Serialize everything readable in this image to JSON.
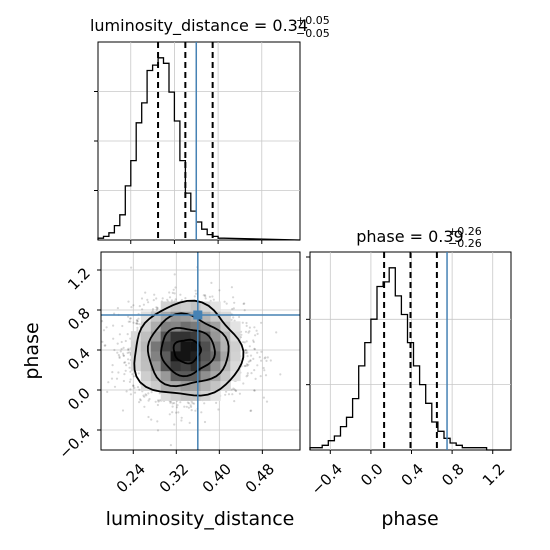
{
  "chart_data": {
    "type": "corner",
    "parameters": [
      "luminosity_distance",
      "phase"
    ],
    "titles": {
      "luminosity_distance": {
        "name": "luminosity_distance",
        "median": "0.34",
        "plus": "+0.05",
        "minus": "−0.05"
      },
      "phase": {
        "name": "phase",
        "median": "0.39",
        "plus": "+0.26",
        "minus": "−0.26"
      }
    },
    "truths": {
      "luminosity_distance": 0.36,
      "phase": 0.75
    },
    "truth_color": "#4682b4",
    "quantiles": {
      "luminosity_distance": [
        0.29,
        0.34,
        0.39
      ],
      "phase": [
        0.13,
        0.39,
        0.65
      ]
    },
    "axes": {
      "luminosity_distance": {
        "label": "luminosity_distance",
        "range": [
          0.18,
          0.55
        ],
        "ticks": [
          0.24,
          0.32,
          0.4,
          0.48
        ],
        "tick_labels": [
          "0.24",
          "0.32",
          "0.40",
          "0.48"
        ]
      },
      "phase": {
        "label": "phase",
        "range": [
          -0.6,
          1.38
        ],
        "ticks": [
          -0.4,
          0.0,
          0.4,
          0.8,
          1.2
        ],
        "tick_labels": [
          "−0.4",
          "0.0",
          "0.4",
          "0.8",
          "1.2"
        ]
      }
    },
    "hist_luminosity_distance": {
      "edges_start": 0.18,
      "bin_width": 0.01,
      "counts": [
        1,
        2,
        4,
        8,
        14,
        30,
        44,
        65,
        76,
        94,
        97,
        101,
        98,
        82,
        66,
        44,
        26,
        16,
        10,
        6,
        3,
        2,
        1
      ]
    },
    "hist_phase": {
      "edges_start": -0.6,
      "bin_width": 0.06,
      "counts": [
        1,
        1,
        2,
        4,
        6,
        10,
        14,
        22,
        36,
        46,
        56,
        70,
        72,
        78,
        66,
        58,
        46,
        36,
        28,
        20,
        12,
        8,
        5,
        3,
        2,
        1,
        1,
        1,
        1,
        0,
        0,
        0,
        0
      ]
    },
    "density_2d": {
      "center": [
        0.34,
        0.39
      ],
      "sigma": [
        0.05,
        0.26
      ],
      "contour_levels": [
        0.5,
        1.0,
        1.5,
        2.0
      ]
    },
    "grid": true
  }
}
